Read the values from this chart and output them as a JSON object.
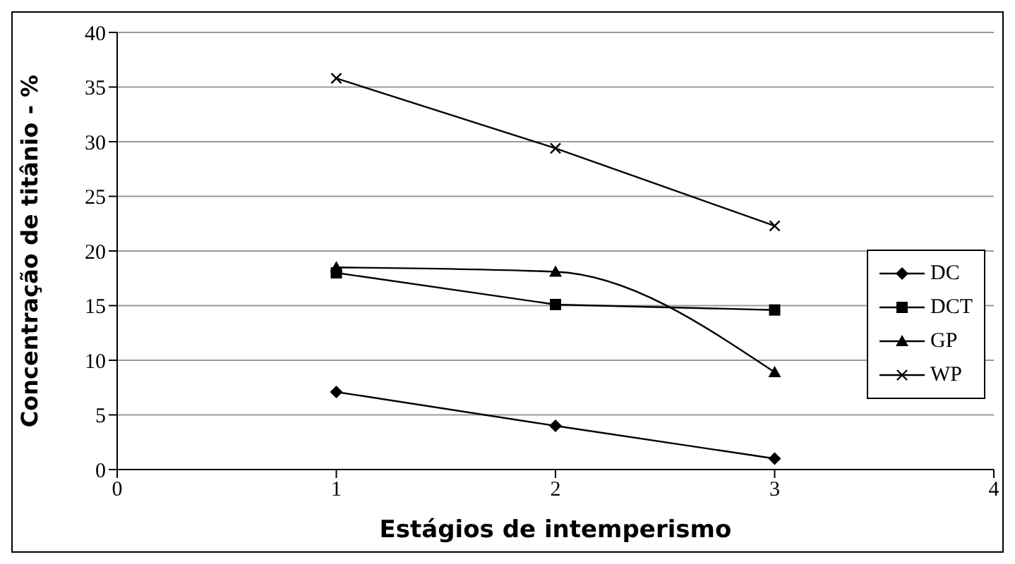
{
  "chart_data": {
    "type": "line",
    "xlabel": "Estágios de intemperismo",
    "ylabel": "Concentração de titânio - %",
    "x": [
      1,
      2,
      3
    ],
    "series": [
      {
        "name": "DC",
        "color": "#000000",
        "marker": "diamond",
        "values": [
          7.1,
          4.0,
          1.0
        ]
      },
      {
        "name": "DCT",
        "color": "#000000",
        "marker": "square",
        "values": [
          18.0,
          15.1,
          14.6
        ]
      },
      {
        "name": "GP",
        "color": "#000000",
        "marker": "triangle",
        "values": [
          18.5,
          18.1,
          8.9
        ]
      },
      {
        "name": "WP",
        "color": "#000000",
        "marker": "cross",
        "values": [
          35.8,
          29.4,
          22.3
        ]
      }
    ],
    "xlim": [
      0,
      4
    ],
    "xticks": [
      0,
      1,
      2,
      3,
      4
    ],
    "ylim": [
      0,
      40
    ],
    "yticks": [
      0,
      5,
      10,
      15,
      20,
      25,
      30,
      35,
      40
    ],
    "grid": "y",
    "legend": "right",
    "line_style": "solid"
  }
}
